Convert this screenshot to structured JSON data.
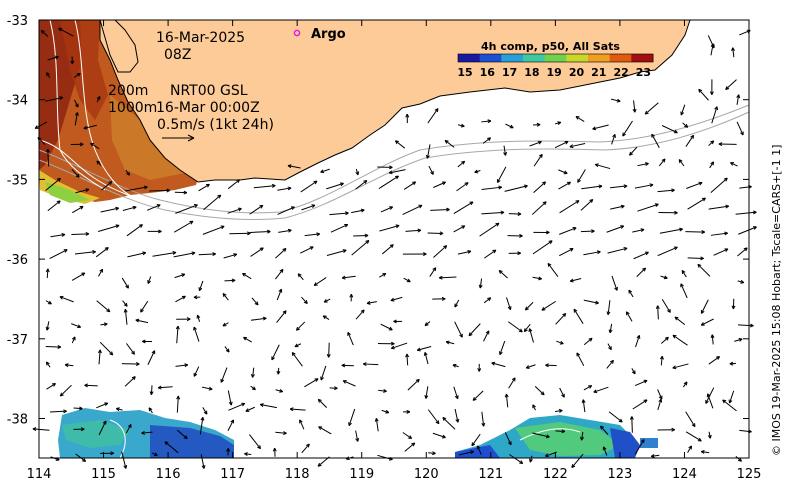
{
  "map": {
    "date": "16-Mar-2025",
    "time": "08Z",
    "argo_label": "Argo",
    "contour_labels": [
      "200m",
      "1000m"
    ],
    "current_source": "NRT00 GSL",
    "current_time": "16-Mar 00:00Z",
    "scale_label": "0.5m/s (1kt 24h)",
    "credit": "© IMOS 19-Mar-2025 15:08 Hobart; Tscale=CARS+[-1 1]",
    "lon_ticks": [
      "114",
      "115",
      "116",
      "117",
      "118",
      "119",
      "120",
      "121",
      "122",
      "123",
      "124",
      "125"
    ],
    "lat_ticks": [
      "-33",
      "-34",
      "-35",
      "-36",
      "-37",
      "-38"
    ],
    "colors": {
      "land": "#fdcb97",
      "argo": "#e020e0",
      "contour": "#a8a8a8",
      "sst_warm": "#b8420e",
      "sst_cool": "#2f9fd0"
    }
  },
  "legend": {
    "title": "4h comp, p50, All Sats",
    "ticks": [
      "15",
      "16",
      "17",
      "18",
      "19",
      "20",
      "21",
      "22",
      "23"
    ],
    "colors": [
      "#1a1aa0",
      "#1f4fd0",
      "#2aa0d8",
      "#3fc8a0",
      "#70d050",
      "#c8d82a",
      "#f0a020",
      "#e05a10",
      "#a01010"
    ]
  }
}
